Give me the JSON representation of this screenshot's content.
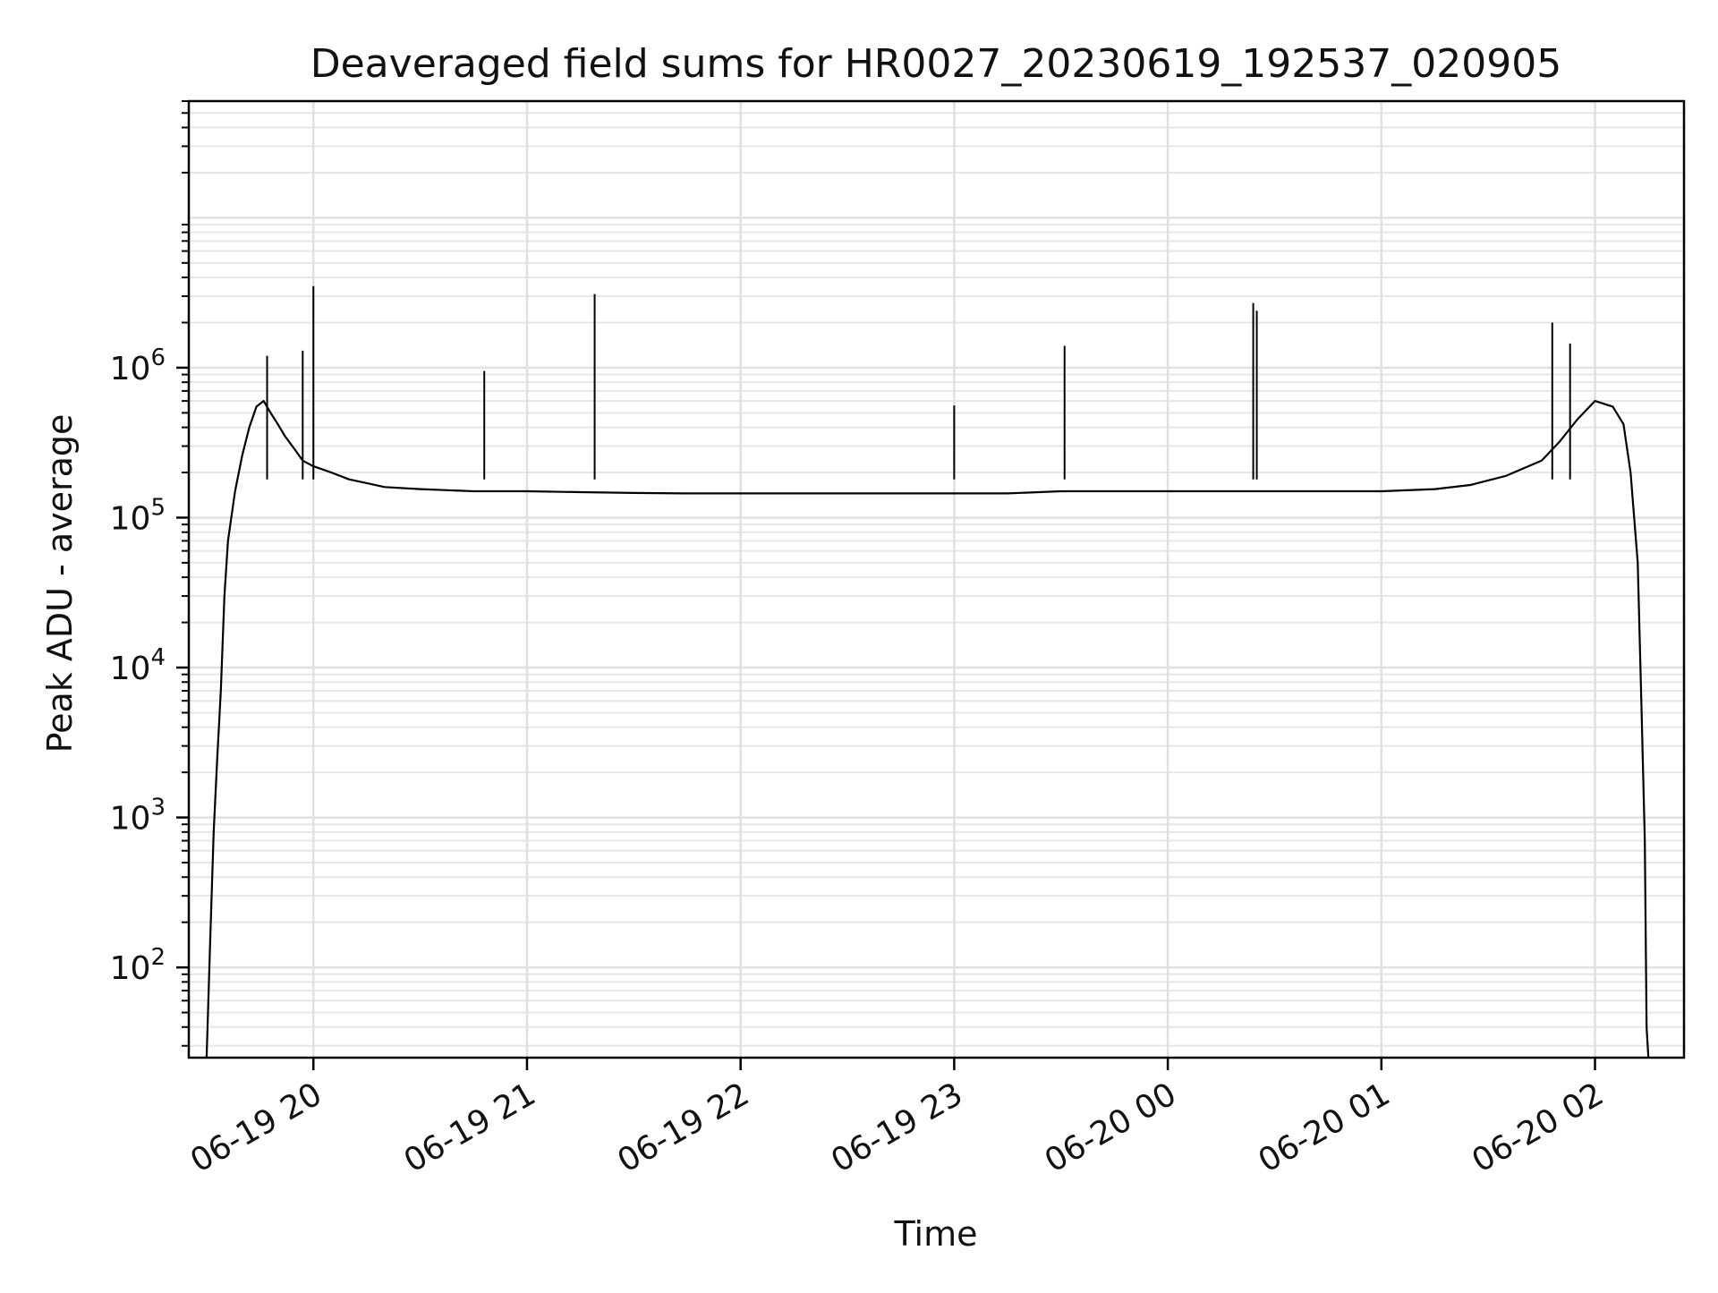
{
  "chart_data": {
    "type": "line",
    "title": "Deaveraged field sums for HR0027_20230619_192537_020905",
    "xlabel": "Time",
    "ylabel": "Peak ADU - average",
    "yscale": "log",
    "ylim": [
      25,
      60000000
    ],
    "xlim": [
      "2023-06-19 19:25",
      "2023-06-20 02:25"
    ],
    "grid": true,
    "x_ticks": [
      {
        "value": "2023-06-19 20:00",
        "label": "06-19 20"
      },
      {
        "value": "2023-06-19 21:00",
        "label": "06-19 21"
      },
      {
        "value": "2023-06-19 22:00",
        "label": "06-19 22"
      },
      {
        "value": "2023-06-19 23:00",
        "label": "06-19 23"
      },
      {
        "value": "2023-06-20 00:00",
        "label": "06-20 00"
      },
      {
        "value": "2023-06-20 01:00",
        "label": "06-20 01"
      },
      {
        "value": "2023-06-20 02:00",
        "label": "06-20 02"
      }
    ],
    "y_ticks": [
      {
        "value": 100,
        "base": "10",
        "exp": "2"
      },
      {
        "value": 1000,
        "base": "10",
        "exp": "3"
      },
      {
        "value": 10000,
        "base": "10",
        "exp": "4"
      },
      {
        "value": 100000,
        "base": "10",
        "exp": "5"
      },
      {
        "value": 1000000,
        "base": "10",
        "exp": "6"
      }
    ],
    "series": [
      {
        "color": "#000000",
        "x": [
          "2023-06-19 19:30",
          "2023-06-19 19:31",
          "2023-06-19 19:32",
          "2023-06-19 19:33",
          "2023-06-19 19:34",
          "2023-06-19 19:35",
          "2023-06-19 19:36",
          "2023-06-19 19:38",
          "2023-06-19 19:40",
          "2023-06-19 19:42",
          "2023-06-19 19:44",
          "2023-06-19 19:46",
          "2023-06-19 19:48",
          "2023-06-19 19:50",
          "2023-06-19 19:52",
          "2023-06-19 19:55",
          "2023-06-19 19:57",
          "2023-06-19 20:00",
          "2023-06-19 20:05",
          "2023-06-19 20:10",
          "2023-06-19 20:15",
          "2023-06-19 20:20",
          "2023-06-19 20:30",
          "2023-06-19 20:45",
          "2023-06-19 21:00",
          "2023-06-19 21:15",
          "2023-06-19 21:30",
          "2023-06-19 21:45",
          "2023-06-19 22:00",
          "2023-06-19 22:15",
          "2023-06-19 22:30",
          "2023-06-19 22:45",
          "2023-06-19 23:00",
          "2023-06-19 23:15",
          "2023-06-19 23:30",
          "2023-06-19 23:45",
          "2023-06-20 00:00",
          "2023-06-20 00:15",
          "2023-06-20 00:30",
          "2023-06-20 00:45",
          "2023-06-20 01:00",
          "2023-06-20 01:15",
          "2023-06-20 01:25",
          "2023-06-20 01:35",
          "2023-06-20 01:45",
          "2023-06-20 01:50",
          "2023-06-20 01:55",
          "2023-06-20 02:00",
          "2023-06-20 02:05",
          "2023-06-20 02:08",
          "2023-06-20 02:10",
          "2023-06-20 02:12",
          "2023-06-20 02:13",
          "2023-06-20 02:14",
          "2023-06-20 02:14:30",
          "2023-06-20 02:15"
        ],
        "y": [
          25,
          150,
          800,
          2500,
          7000,
          30000,
          70000,
          150000,
          260000,
          400000,
          550000,
          600000,
          500000,
          420000,
          350000,
          280000,
          240000,
          220000,
          200000,
          180000,
          170000,
          160000,
          155000,
          150000,
          150000,
          148000,
          146000,
          145000,
          145000,
          145000,
          145000,
          145000,
          145000,
          145000,
          150000,
          150000,
          150000,
          150000,
          150000,
          150000,
          150000,
          155000,
          165000,
          190000,
          240000,
          320000,
          450000,
          600000,
          550000,
          420000,
          200000,
          50000,
          6000,
          700,
          40,
          25
        ]
      }
    ],
    "spikes": [
      {
        "x": "2023-06-19 19:47",
        "y": 1200000
      },
      {
        "x": "2023-06-19 19:57",
        "y": 1300000
      },
      {
        "x": "2023-06-19 20:00",
        "y": 3500000
      },
      {
        "x": "2023-06-19 20:48",
        "y": 950000
      },
      {
        "x": "2023-06-19 21:19",
        "y": 3100000
      },
      {
        "x": "2023-06-19 23:00",
        "y": 560000
      },
      {
        "x": "2023-06-19 23:31",
        "y": 1400000
      },
      {
        "x": "2023-06-20 00:24",
        "y": 2700000
      },
      {
        "x": "2023-06-20 00:25",
        "y": 2400000
      },
      {
        "x": "2023-06-20 01:48",
        "y": 2000000
      },
      {
        "x": "2023-06-20 01:53",
        "y": 1450000
      }
    ]
  }
}
